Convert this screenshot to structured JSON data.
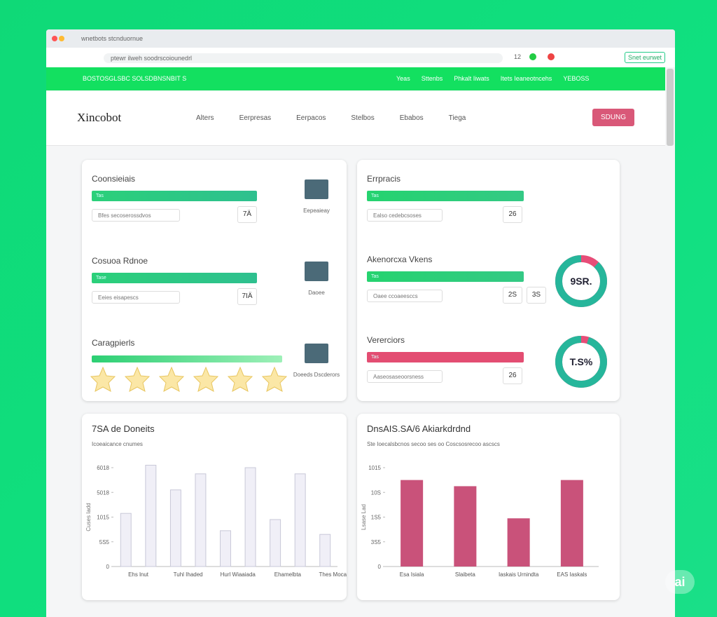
{
  "browser": {
    "tab": "wnetbots stcnduornue",
    "url": "ptewr ilweh soodrscoiounedrl",
    "count": "12",
    "extension": "Snet eurwet"
  },
  "topbar": {
    "title": "BOSTOSGLSBC SOLSDBNSNBIT S",
    "links": [
      "Yeas",
      "Sttenbs",
      "Phkalt Iiwats",
      "Itets Ieaneotncehs",
      "YEBOSS"
    ]
  },
  "header": {
    "logo": "Xincobot",
    "nav": [
      "Alters",
      "Eerpresas",
      "Eerpacos",
      "Stelbos",
      "Ebabos",
      "Tiega"
    ],
    "button": "SDUNG"
  },
  "left_card": {
    "sections": [
      {
        "title": "Coonsieiais",
        "bar": "Tas",
        "input": "Bfes secoserossdvos",
        "value": "7Ä",
        "icon_label": "Eepeaieay"
      },
      {
        "title": "Cosuoa Rdnoe",
        "bar": "Tase",
        "input": "Eeies eisapescs",
        "value": "7IÄ",
        "icon_label": "Daoee"
      },
      {
        "title": "Caragpierls",
        "icon_label": "Doeeds Dscderors"
      }
    ]
  },
  "right_card": {
    "sections": [
      {
        "title": "Errpracis",
        "bar": "Tas",
        "input": "Ealso cedebcsoses",
        "value": "26"
      },
      {
        "title": "Akenorcxa Vkens",
        "bar": "Tas",
        "input": "Oaee ccoaeesccs",
        "value": "2S",
        "value2": "3S",
        "donut": {
          "label": "9SR.",
          "percent": 88
        }
      },
      {
        "title": "Vererciors",
        "bar": "Tas",
        "input": "Aaseosaseoorsness",
        "value": "26",
        "donut": {
          "label": "T.S%",
          "percent": 95
        }
      }
    ]
  },
  "chart_data": [
    {
      "type": "bar",
      "title": "7SA de Doneits",
      "subtitle": "Icoeaicance cnumes",
      "color": "#f0eff7",
      "categories": [
        "Ehs lnut",
        null,
        "Tuhl Ihaded",
        null,
        "Hurl Wiaaiada",
        null,
        "Ehamelbta",
        null,
        "Thes Mocanda"
      ],
      "values": [
        2.15,
        4.1,
        3.1,
        3.75,
        1.45,
        4.0,
        1.9,
        3.75,
        1.3
      ],
      "ylim": [
        0,
        4
      ],
      "yticks": [
        {
          "value": 0,
          "label": "0"
        },
        {
          "value": 1,
          "label": "5S5"
        },
        {
          "value": 2,
          "label": "1015"
        },
        {
          "value": 3,
          "label": "5018"
        },
        {
          "value": 4,
          "label": "6018"
        }
      ],
      "ylabel": "Cuses Iadd"
    },
    {
      "type": "bar",
      "title": "DnsAIS.SA/6 Akiarkdrdnd",
      "subtitle": "Ste Ioecalsbcnos secoo ses oo Coscsosrecoo ascscs",
      "color": "#c9527a",
      "categories": [
        "Esa Isiala",
        "Slaibeta",
        "Iaskais Urnindta",
        "EAS Iaskals"
      ],
      "values": [
        3.5,
        3.25,
        1.95,
        3.5
      ],
      "ylim": [
        0,
        4
      ],
      "yticks": [
        {
          "value": 0,
          "label": "0"
        },
        {
          "value": 1,
          "label": "3S5"
        },
        {
          "value": 2,
          "label": "1S5"
        },
        {
          "value": 3,
          "label": "10S"
        },
        {
          "value": 4,
          "label": "1015"
        }
      ],
      "ylabel": "Lsase Lad"
    }
  ]
}
